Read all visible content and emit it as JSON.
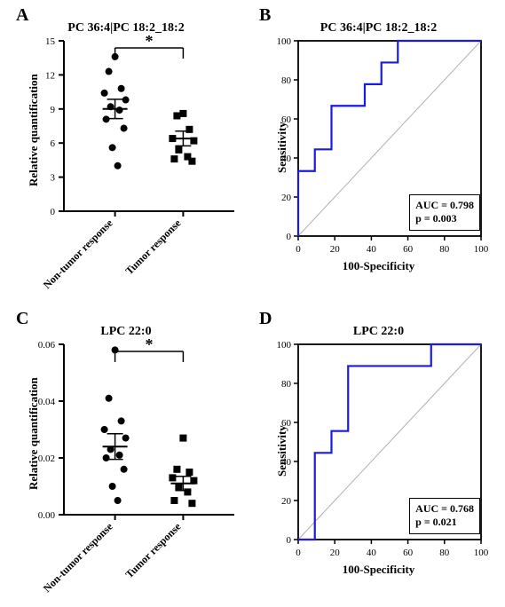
{
  "panelA": {
    "label": "A",
    "title": "PC 36:4|PC 18:2_18:2",
    "ylabel": "Relative quantification",
    "ylim": [
      0,
      15
    ],
    "yticks": [
      0,
      3,
      6,
      9,
      12,
      15
    ],
    "categories": [
      "Non-tumor response",
      "Tumor response"
    ],
    "significance": "*",
    "groups": [
      {
        "x": 0.3,
        "marker": "circle",
        "points": [
          13.6,
          12.3,
          10.8,
          10.4,
          9.8,
          9.2,
          8.9,
          8.1,
          7.3,
          5.6,
          4.0
        ],
        "mean": 9.0,
        "sem": 0.85
      },
      {
        "x": 0.7,
        "marker": "square",
        "points": [
          8.6,
          8.4,
          7.2,
          6.4,
          6.2,
          5.4,
          4.8,
          4.6,
          4.4
        ],
        "mean": 6.4,
        "sem": 0.65
      }
    ],
    "colors": {
      "axis": "#000000",
      "marker": "#000000",
      "error": "#000000"
    }
  },
  "panelB": {
    "label": "B",
    "title": "PC 36:4|PC 18:2_18:2",
    "xlabel": "100-Specificity",
    "ylabel": "Sensitivity",
    "xlim": [
      0,
      100
    ],
    "ylim": [
      0,
      100
    ],
    "xticks": [
      0,
      20,
      40,
      60,
      80,
      100
    ],
    "yticks": [
      0,
      20,
      40,
      60,
      80,
      100
    ],
    "auc_text": "AUC = 0.798",
    "p_text": "p = 0.003",
    "roc_points": [
      [
        0,
        0
      ],
      [
        0,
        33.3
      ],
      [
        9.1,
        33.3
      ],
      [
        9.1,
        44.4
      ],
      [
        18.2,
        44.4
      ],
      [
        18.2,
        66.7
      ],
      [
        36.4,
        66.7
      ],
      [
        36.4,
        77.8
      ],
      [
        45.5,
        77.8
      ],
      [
        45.5,
        88.9
      ],
      [
        54.5,
        88.9
      ],
      [
        54.5,
        100
      ],
      [
        100,
        100
      ]
    ],
    "colors": {
      "axis": "#000000",
      "roc": "#1a1ae6",
      "diag": "#b0b0b0"
    }
  },
  "panelC": {
    "label": "C",
    "title": "LPC 22:0",
    "ylabel": "Relative quantification",
    "ylim": [
      0,
      0.06
    ],
    "yticks": [
      0,
      0.02,
      0.04,
      0.06
    ],
    "ytick_labels": [
      "0.00",
      "0.02",
      "0.04",
      "0.06"
    ],
    "categories": [
      "Non-tumor response",
      "Tumor response"
    ],
    "significance": "*",
    "groups": [
      {
        "x": 0.3,
        "marker": "circle",
        "points": [
          0.058,
          0.041,
          0.033,
          0.03,
          0.027,
          0.023,
          0.021,
          0.02,
          0.016,
          0.01,
          0.005
        ],
        "mean": 0.024,
        "sem": 0.0045
      },
      {
        "x": 0.7,
        "marker": "square",
        "points": [
          0.027,
          0.016,
          0.015,
          0.013,
          0.012,
          0.01,
          0.008,
          0.005,
          0.004
        ],
        "mean": 0.011,
        "sem": 0.0025
      }
    ],
    "colors": {
      "axis": "#000000",
      "marker": "#000000",
      "error": "#000000"
    }
  },
  "panelD": {
    "label": "D",
    "title": "LPC 22:0",
    "xlabel": "100-Specificity",
    "ylabel": "Sensitivity",
    "xlim": [
      0,
      100
    ],
    "ylim": [
      0,
      100
    ],
    "xticks": [
      0,
      20,
      40,
      60,
      80,
      100
    ],
    "yticks": [
      0,
      20,
      40,
      60,
      80,
      100
    ],
    "auc_text": "AUC = 0.768",
    "p_text": "p = 0.021",
    "roc_points": [
      [
        0,
        0
      ],
      [
        9.1,
        0
      ],
      [
        9.1,
        44.4
      ],
      [
        18.2,
        44.4
      ],
      [
        18.2,
        55.6
      ],
      [
        27.3,
        55.6
      ],
      [
        27.3,
        88.9
      ],
      [
        72.7,
        88.9
      ],
      [
        72.7,
        100
      ],
      [
        100,
        100
      ]
    ],
    "colors": {
      "axis": "#000000",
      "roc": "#1a1ae6",
      "diag": "#b0b0b0"
    }
  }
}
